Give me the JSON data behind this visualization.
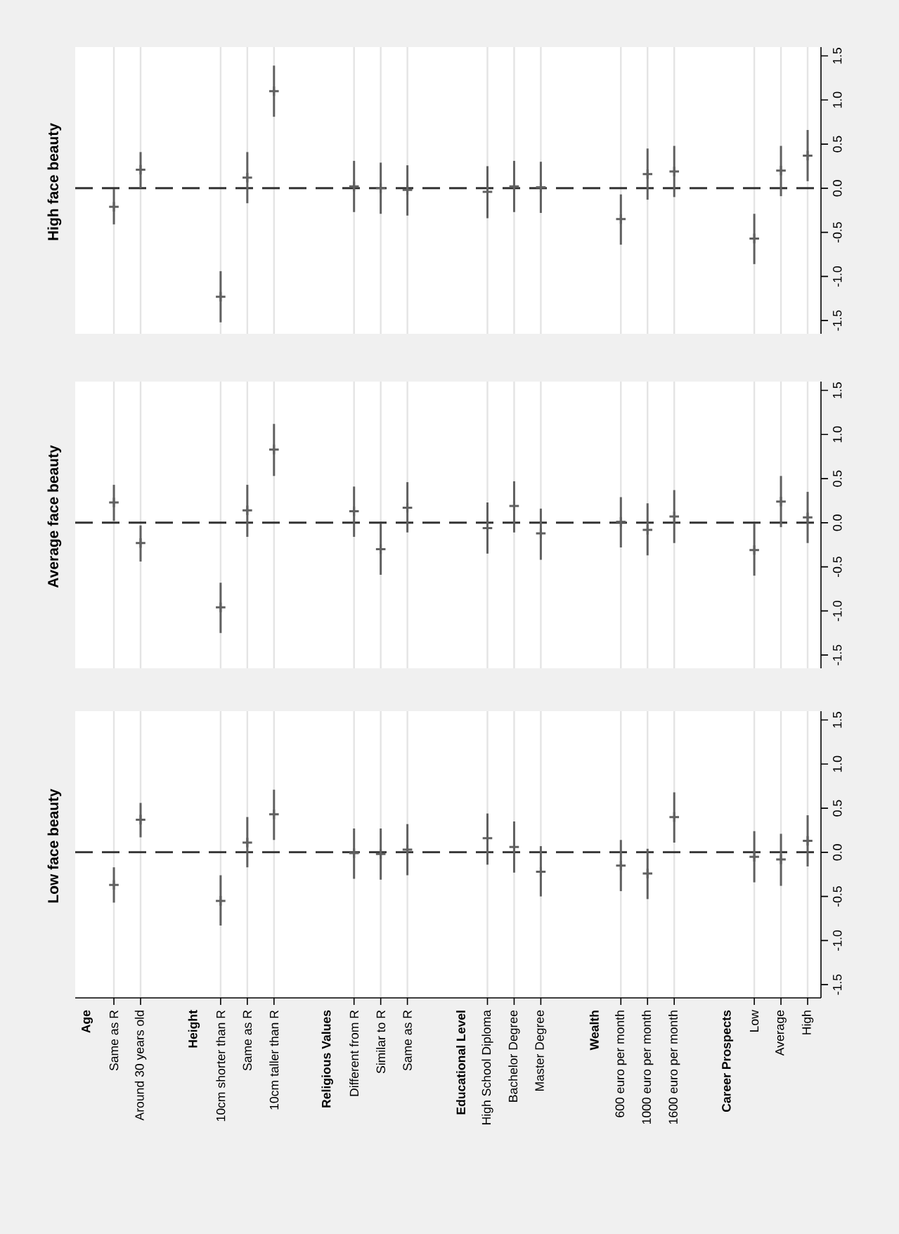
{
  "chart_data": [
    {
      "type": "scatter",
      "title": "High face beauty",
      "categories": [
        null,
        null,
        null,
        null,
        null,
        null,
        null,
        null,
        null,
        null,
        null,
        null,
        null,
        null,
        null,
        null,
        null,
        null,
        null,
        null,
        null,
        null,
        null,
        null,
        null,
        null,
        null,
        null
      ],
      "values": [
        null,
        -0.21,
        0.21,
        null,
        null,
        -1.23,
        0.12,
        1.1,
        null,
        null,
        0.02,
        0.0,
        -0.02,
        null,
        null,
        -0.04,
        0.02,
        0.01,
        null,
        null,
        -0.35,
        0.16,
        0.19,
        null,
        null,
        -0.57,
        0.2,
        0.37
      ],
      "errors": [
        null,
        [
          -0.41,
          -0.01
        ],
        [
          0.0,
          0.41
        ],
        null,
        null,
        [
          -1.52,
          -0.94
        ],
        [
          -0.17,
          0.41
        ],
        [
          0.81,
          1.39
        ],
        null,
        null,
        [
          -0.27,
          0.31
        ],
        [
          -0.29,
          0.29
        ],
        [
          -0.31,
          0.26
        ],
        null,
        null,
        [
          -0.34,
          0.25
        ],
        [
          -0.27,
          0.31
        ],
        [
          -0.28,
          0.3
        ],
        null,
        null,
        [
          -0.64,
          -0.07
        ],
        [
          -0.13,
          0.45
        ],
        [
          -0.1,
          0.48
        ],
        null,
        null,
        [
          -0.86,
          -0.29
        ],
        [
          -0.09,
          0.48
        ],
        [
          0.08,
          0.66
        ]
      ],
      "color": "#606060",
      "marker": "cross",
      "grid": "x",
      "tick_labels": "y",
      "ylim": [
        -1.65,
        1.6
      ],
      "yticks": [
        -1.5,
        {
          "value": -1,
          "label": "-1.0"
        },
        -0.5,
        {
          "value": 0,
          "label": "0.0"
        },
        0.5,
        {
          "value": 1,
          "label": "1.0"
        },
        1.5
      ],
      "ref_lines": [
        {
          "axis": "y",
          "value": 0,
          "color": "#333333",
          "line_style": "dashed"
        }
      ]
    },
    {
      "type": "scatter",
      "title": "Average face beauty",
      "categories": [
        null,
        null,
        null,
        null,
        null,
        null,
        null,
        null,
        null,
        null,
        null,
        null,
        null,
        null,
        null,
        null,
        null,
        null,
        null,
        null,
        null,
        null,
        null,
        null,
        null,
        null,
        null,
        null
      ],
      "values": [
        null,
        0.23,
        -0.23,
        null,
        null,
        -0.96,
        0.14,
        0.83,
        null,
        null,
        0.13,
        -0.3,
        0.17,
        null,
        null,
        -0.06,
        0.19,
        -0.12,
        null,
        null,
        0.01,
        -0.08,
        0.07,
        null,
        null,
        -0.31,
        0.24,
        0.06
      ],
      "errors": [
        null,
        [
          0.02,
          0.43
        ],
        [
          -0.44,
          -0.03
        ],
        null,
        null,
        [
          -1.25,
          -0.68
        ],
        [
          -0.16,
          0.43
        ],
        [
          0.53,
          1.12
        ],
        null,
        null,
        [
          -0.16,
          0.41
        ],
        [
          -0.59,
          -0.01
        ],
        [
          -0.11,
          0.46
        ],
        null,
        null,
        [
          -0.35,
          0.23
        ],
        [
          -0.11,
          0.47
        ],
        [
          -0.42,
          0.16
        ],
        null,
        null,
        [
          -0.28,
          0.29
        ],
        [
          -0.37,
          0.22
        ],
        [
          -0.23,
          0.37
        ],
        null,
        null,
        [
          -0.6,
          -0.01
        ],
        [
          -0.05,
          0.53
        ],
        [
          -0.23,
          0.35
        ]
      ],
      "color": "#606060",
      "marker": "cross",
      "grid": "x",
      "tick_labels": "y",
      "ylim": [
        -1.65,
        1.6
      ],
      "yticks": [
        -1.5,
        {
          "value": -1,
          "label": "-1.0"
        },
        -0.5,
        {
          "value": 0,
          "label": "0.0"
        },
        0.5,
        {
          "value": 1,
          "label": "1.0"
        },
        1.5
      ],
      "ref_lines": [
        {
          "axis": "y",
          "value": 0,
          "color": "#333333",
          "line_style": "dashed"
        }
      ]
    },
    {
      "type": "scatter",
      "title": "Low face beauty",
      "categories": [
        "Age",
        "Same as R",
        "Around 30 years old",
        null,
        "Height",
        "10cm shorter than R",
        "Same as R",
        "10cm taller than R",
        null,
        "Religious Values",
        "Different from R",
        "Similar to R",
        "Same as R",
        null,
        "Educational Level",
        "High School Diploma",
        "Bachelor Degree",
        "Master Degree",
        null,
        "Wealth",
        "600 euro per month",
        "1000 euro per month",
        "1600 euro per month",
        null,
        "Career Prospects",
        "Low",
        "Average",
        "High"
      ],
      "values": [
        null,
        -0.37,
        0.37,
        null,
        null,
        -0.55,
        0.11,
        0.43,
        null,
        null,
        -0.01,
        -0.02,
        0.03,
        null,
        null,
        0.16,
        0.06,
        -0.22,
        null,
        null,
        -0.15,
        -0.24,
        0.4,
        null,
        null,
        -0.05,
        -0.08,
        0.13
      ],
      "errors": [
        null,
        [
          -0.57,
          -0.17
        ],
        [
          0.17,
          0.56
        ],
        null,
        null,
        [
          -0.83,
          -0.26
        ],
        [
          -0.17,
          0.4
        ],
        [
          0.14,
          0.71
        ],
        null,
        null,
        [
          -0.3,
          0.27
        ],
        [
          -0.31,
          0.27
        ],
        [
          -0.26,
          0.32
        ],
        null,
        null,
        [
          -0.14,
          0.44
        ],
        [
          -0.23,
          0.35
        ],
        [
          -0.5,
          0.07
        ],
        null,
        null,
        [
          -0.44,
          0.14
        ],
        [
          -0.53,
          0.04
        ],
        [
          0.11,
          0.68
        ],
        null,
        null,
        [
          -0.34,
          0.24
        ],
        [
          -0.38,
          0.21
        ],
        [
          -0.16,
          0.42
        ]
      ],
      "color": "#606060",
      "marker": "cross",
      "grid": "x",
      "ylim": [
        -1.65,
        1.6
      ],
      "yticks": [
        -1.5,
        {
          "value": -1,
          "label": "-1.0"
        },
        -0.5,
        {
          "value": 0,
          "label": "0.0"
        },
        0.5,
        {
          "value": 1,
          "label": "1.0"
        },
        1.5
      ],
      "ref_lines": [
        {
          "axis": "y",
          "value": 0,
          "color": "#333333",
          "line_style": "dashed"
        }
      ]
    }
  ]
}
